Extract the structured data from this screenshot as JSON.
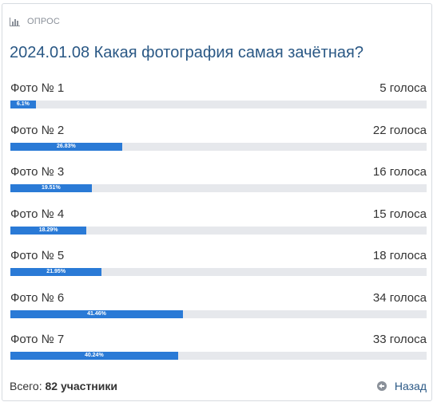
{
  "header": {
    "label": "ОПРОС",
    "icon": "poll-chart-icon"
  },
  "title": "2024.01.08 Какая фотография самая зачётная?",
  "options": [
    {
      "label": "Фото № 1",
      "count": "5 голоса",
      "percent_text": "6.1%",
      "percent": 6.1
    },
    {
      "label": "Фото № 2",
      "count": "22 голоса",
      "percent_text": "26.83%",
      "percent": 26.83
    },
    {
      "label": "Фото № 3",
      "count": "16 голоса",
      "percent_text": "19.51%",
      "percent": 19.51
    },
    {
      "label": "Фото № 4",
      "count": "15 голоса",
      "percent_text": "18.29%",
      "percent": 18.29
    },
    {
      "label": "Фото № 5",
      "count": "18 голоса",
      "percent_text": "21.95%",
      "percent": 21.95
    },
    {
      "label": "Фото № 6",
      "count": "34 голоса",
      "percent_text": "41.46%",
      "percent": 41.46
    },
    {
      "label": "Фото № 7",
      "count": "33 голоса",
      "percent_text": "40.24%",
      "percent": 40.24
    }
  ],
  "footer": {
    "total_prefix": "Всего:",
    "total_value": "82 участники",
    "back_label": "Назад",
    "back_icon": "arrow-left-circle-icon"
  },
  "colors": {
    "accent": "#2a7ad6",
    "title": "#2a5885",
    "track": "#e6e8ec"
  }
}
